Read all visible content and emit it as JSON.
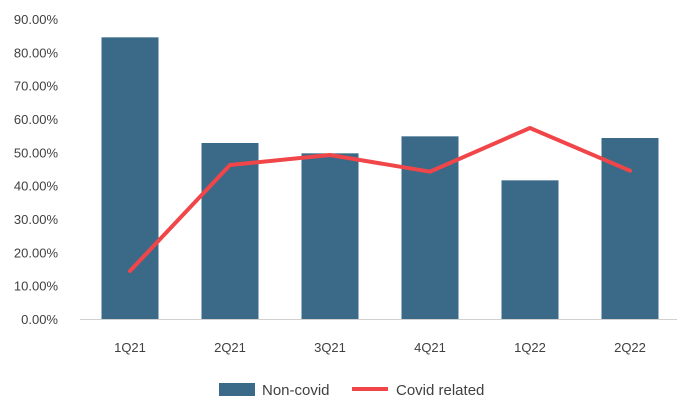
{
  "chart_data": {
    "type": "bar",
    "categories": [
      "1Q21",
      "2Q21",
      "3Q21",
      "4Q21",
      "1Q22",
      "2Q22"
    ],
    "series": [
      {
        "name": "Non-covid",
        "type": "bar",
        "color": "#3b6a88",
        "values": [
          84.5,
          52.8,
          49.7,
          54.8,
          41.6,
          54.3
        ]
      },
      {
        "name": "Covid related",
        "type": "line",
        "color": "#f0464a",
        "values": [
          14.4,
          46.2,
          49.2,
          44.2,
          57.3,
          44.5
        ]
      }
    ],
    "ylim": [
      0,
      90
    ],
    "yticks": [
      "0.00%",
      "10.00%",
      "20.00%",
      "30.00%",
      "40.00%",
      "50.00%",
      "60.00%",
      "70.00%",
      "80.00%",
      "90.00%"
    ],
    "grid": false,
    "legend": "bottom-center"
  }
}
